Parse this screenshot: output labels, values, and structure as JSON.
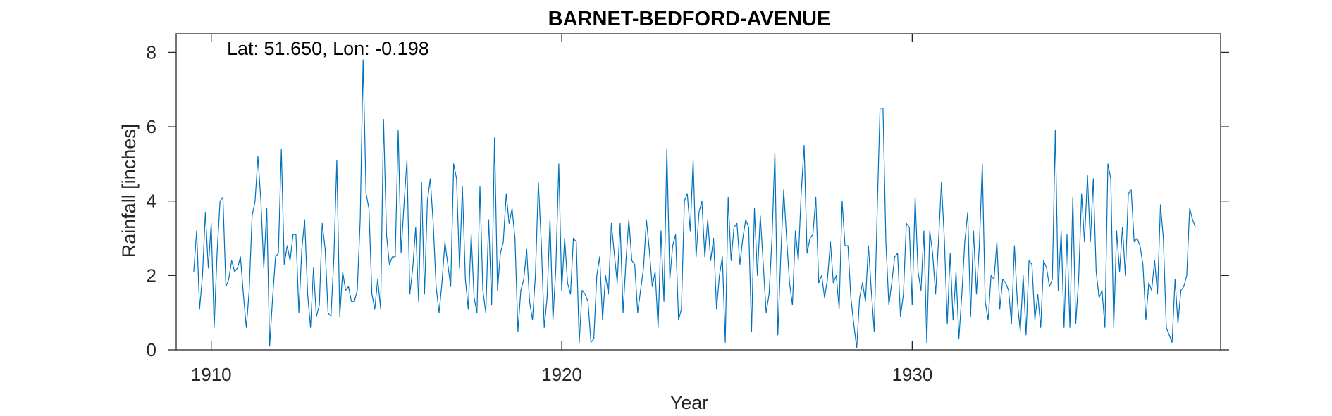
{
  "chart_data": {
    "type": "line",
    "title": "BARNET-BEDFORD-AVENUE",
    "xlabel": "Year",
    "ylabel": "Rainfall [inches]",
    "annotation": "Lat: 51.650, Lon: -0.198",
    "xlim": [
      1909,
      1938.8
    ],
    "ylim": [
      0,
      8.5
    ],
    "xticks": [
      1910,
      1920,
      1930
    ],
    "yticks": [
      0,
      2,
      4,
      6,
      8
    ],
    "grid": false,
    "x_start": 1909.5,
    "x_step": 0.08333,
    "series": [
      {
        "color": "#0072BD",
        "values": [
          2.1,
          3.2,
          1.1,
          2.0,
          3.7,
          2.2,
          3.4,
          0.6,
          2.6,
          4.0,
          4.1,
          1.7,
          1.9,
          2.4,
          2.1,
          2.2,
          2.5,
          1.5,
          0.6,
          1.6,
          3.6,
          4.0,
          5.2,
          4.0,
          2.2,
          3.8,
          0.1,
          1.4,
          2.5,
          2.6,
          5.4,
          2.3,
          2.8,
          2.4,
          3.1,
          3.1,
          1.0,
          2.7,
          3.5,
          1.5,
          0.6,
          2.2,
          0.9,
          1.2,
          3.4,
          2.7,
          1.0,
          0.9,
          2.5,
          5.1,
          0.9,
          2.1,
          1.6,
          1.7,
          1.3,
          1.3,
          1.6,
          3.5,
          7.8,
          4.2,
          3.8,
          1.5,
          1.1,
          1.9,
          1.1,
          6.2,
          3.1,
          2.3,
          2.5,
          2.5,
          5.9,
          2.6,
          3.9,
          5.1,
          1.5,
          2.2,
          3.3,
          1.3,
          4.5,
          1.5,
          4.0,
          4.6,
          3.4,
          1.7,
          1.0,
          1.8,
          2.9,
          2.3,
          1.7,
          5.0,
          4.6,
          2.2,
          4.4,
          1.9,
          1.1,
          3.1,
          1.4,
          1.0,
          4.4,
          1.6,
          1.0,
          3.5,
          1.2,
          5.7,
          1.6,
          2.6,
          2.9,
          4.2,
          3.4,
          3.8,
          3.0,
          0.5,
          1.6,
          1.9,
          2.7,
          1.3,
          0.8,
          2.0,
          4.5,
          2.9,
          0.6,
          1.4,
          3.5,
          0.8,
          2.2,
          5.0,
          1.6,
          3.0,
          1.8,
          1.5,
          3.0,
          2.9,
          0.2,
          1.6,
          1.5,
          1.3,
          0.2,
          0.3,
          2.0,
          2.5,
          0.8,
          2.0,
          1.5,
          3.4,
          2.6,
          1.8,
          3.4,
          1.0,
          2.4,
          3.5,
          2.4,
          2.3,
          1.0,
          1.6,
          2.2,
          3.5,
          2.7,
          1.7,
          2.1,
          0.6,
          3.2,
          1.3,
          5.4,
          1.9,
          2.8,
          3.1,
          0.8,
          1.1,
          4.0,
          4.2,
          3.2,
          5.1,
          2.5,
          3.7,
          4.0,
          2.5,
          3.5,
          2.4,
          3.0,
          1.1,
          2.0,
          2.5,
          0.2,
          4.1,
          2.4,
          3.3,
          3.4,
          2.3,
          3.0,
          3.5,
          3.3,
          0.5,
          3.8,
          2.0,
          3.6,
          2.3,
          1.0,
          1.5,
          3.0,
          5.3,
          0.4,
          2.5,
          4.3,
          3.0,
          1.8,
          1.2,
          3.2,
          2.4,
          4.2,
          5.5,
          2.6,
          3.0,
          3.1,
          4.1,
          1.8,
          2.0,
          1.4,
          1.9,
          2.9,
          1.8,
          2.0,
          1.1,
          4.0,
          2.8,
          2.8,
          1.4,
          0.7,
          0.05,
          1.4,
          1.8,
          1.3,
          2.8,
          1.6,
          0.5,
          3.7,
          6.5,
          6.5,
          2.9,
          1.2,
          1.8,
          2.5,
          2.6,
          0.9,
          1.5,
          3.4,
          3.3,
          1.2,
          4.1,
          2.1,
          1.6,
          3.2,
          0.2,
          3.2,
          2.6,
          1.5,
          2.9,
          4.5,
          3.0,
          0.7,
          2.6,
          0.8,
          2.1,
          0.3,
          1.5,
          2.9,
          3.7,
          0.9,
          3.2,
          1.5,
          2.8,
          5.0,
          1.3,
          0.8,
          2.0,
          1.9,
          2.9,
          1.1,
          1.9,
          1.8,
          1.6,
          0.7,
          2.8,
          1.3,
          0.5,
          2.0,
          0.4,
          2.4,
          2.3,
          0.8,
          1.5,
          0.6,
          2.4,
          2.2,
          1.7,
          1.9,
          5.9,
          1.6,
          3.2,
          0.6,
          3.1,
          0.6,
          4.1,
          0.7,
          1.9,
          4.2,
          2.9,
          4.7,
          2.9,
          4.6,
          2.1,
          1.4,
          1.6,
          0.6,
          5.0,
          4.6,
          0.6,
          3.2,
          2.1,
          3.3,
          2.0,
          4.2,
          4.3,
          2.9,
          3.0,
          2.8,
          2.3,
          0.8,
          1.8,
          1.6,
          2.4,
          1.5,
          3.9,
          3.0,
          0.6,
          0.4,
          0.2,
          1.9,
          0.7,
          1.6,
          1.7,
          2.0,
          3.8,
          3.5,
          3.3
        ]
      }
    ]
  }
}
